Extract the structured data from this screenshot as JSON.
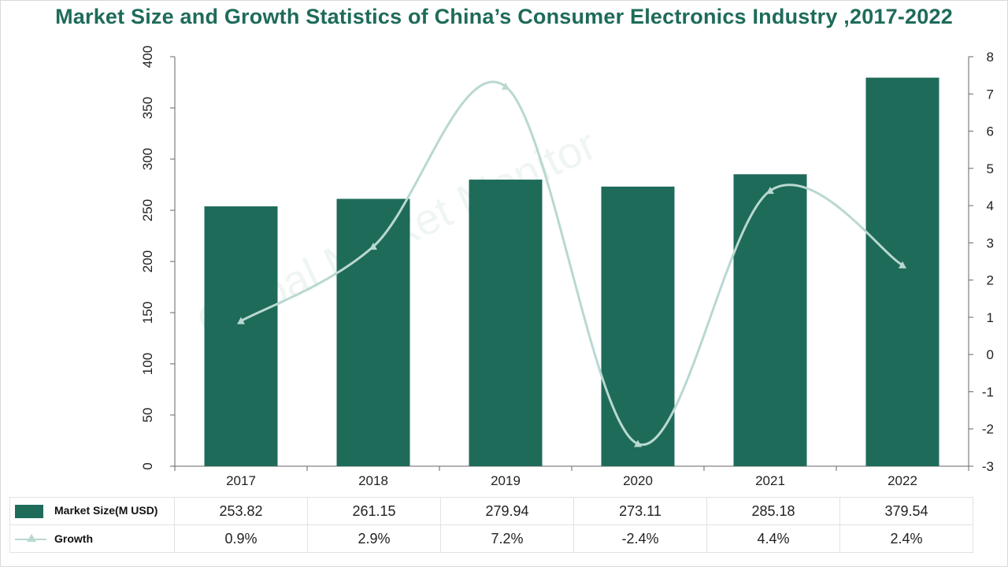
{
  "chart_data": {
    "type": "bar",
    "title": "Market Size and Growth Statistics of China’s Consumer Electronics Industry ,2017-2022",
    "categories": [
      "2017",
      "2018",
      "2019",
      "2020",
      "2021",
      "2022"
    ],
    "series": [
      {
        "name": "Market Size(M USD)",
        "type": "bar",
        "axis": "left",
        "values": [
          253.82,
          261.15,
          279.94,
          273.11,
          285.18,
          379.54
        ],
        "labels": [
          "253.82",
          "261.15",
          "279.94",
          "273.11",
          "285.18",
          "379.54"
        ],
        "color": "#1e6b5a"
      },
      {
        "name": "Growth",
        "type": "line",
        "axis": "right",
        "marker": "triangle",
        "smooth": true,
        "values": [
          0.9,
          2.9,
          7.2,
          -2.4,
          4.4,
          2.4
        ],
        "labels": [
          "0.9%",
          "2.9%",
          "7.2%",
          "-2.4%",
          "4.4%",
          "2.4%"
        ],
        "color": "#b9d8d1"
      }
    ],
    "y_left": {
      "min": 0,
      "max": 400,
      "ticks": [
        "0",
        "50",
        "100",
        "150",
        "200",
        "250",
        "300",
        "350",
        "400"
      ]
    },
    "y_right": {
      "min": -3,
      "max": 8,
      "ticks": [
        "-3",
        "-2",
        "-1",
        "0",
        "1",
        "2",
        "3",
        "4",
        "5",
        "6",
        "7",
        "8"
      ]
    },
    "legend": "table-bottom",
    "grid": false
  },
  "watermark": "Global Market Monitor",
  "colors": {
    "title": "#1e6b5a",
    "bar": "#1e6b5a",
    "line": "#b9d8d1"
  }
}
